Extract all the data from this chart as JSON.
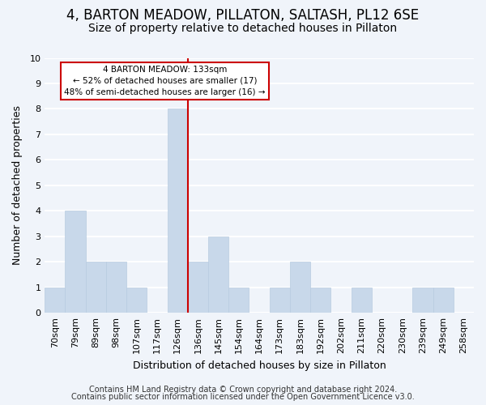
{
  "title": "4, BARTON MEADOW, PILLATON, SALTASH, PL12 6SE",
  "subtitle": "Size of property relative to detached houses in Pillaton",
  "xlabel": "Distribution of detached houses by size in Pillaton",
  "ylabel": "Number of detached properties",
  "bar_labels": [
    "70sqm",
    "79sqm",
    "89sqm",
    "98sqm",
    "107sqm",
    "117sqm",
    "126sqm",
    "136sqm",
    "145sqm",
    "154sqm",
    "164sqm",
    "173sqm",
    "183sqm",
    "192sqm",
    "202sqm",
    "211sqm",
    "220sqm",
    "230sqm",
    "239sqm",
    "249sqm",
    "258sqm"
  ],
  "bar_values": [
    1,
    4,
    2,
    2,
    1,
    0,
    8,
    2,
    3,
    1,
    0,
    1,
    2,
    1,
    0,
    1,
    0,
    0,
    1,
    1,
    0
  ],
  "bar_color": "#c8d8ea",
  "bar_edge_color": "#b8cce0",
  "vline_x_index": 6,
  "vline_color": "#cc0000",
  "annotation_title": "4 BARTON MEADOW: 133sqm",
  "annotation_line1": "← 52% of detached houses are smaller (17)",
  "annotation_line2": "48% of semi-detached houses are larger (16) →",
  "annotation_box_edge": "#cc0000",
  "annotation_box_face": "white",
  "ylim": [
    0,
    10
  ],
  "yticks": [
    0,
    1,
    2,
    3,
    4,
    5,
    6,
    7,
    8,
    9,
    10
  ],
  "footer1": "Contains HM Land Registry data © Crown copyright and database right 2024.",
  "footer2": "Contains public sector information licensed under the Open Government Licence v3.0.",
  "background_color": "#f0f4fa",
  "grid_color": "white",
  "title_fontsize": 12,
  "subtitle_fontsize": 10,
  "axis_label_fontsize": 9,
  "tick_fontsize": 8,
  "footer_fontsize": 7
}
